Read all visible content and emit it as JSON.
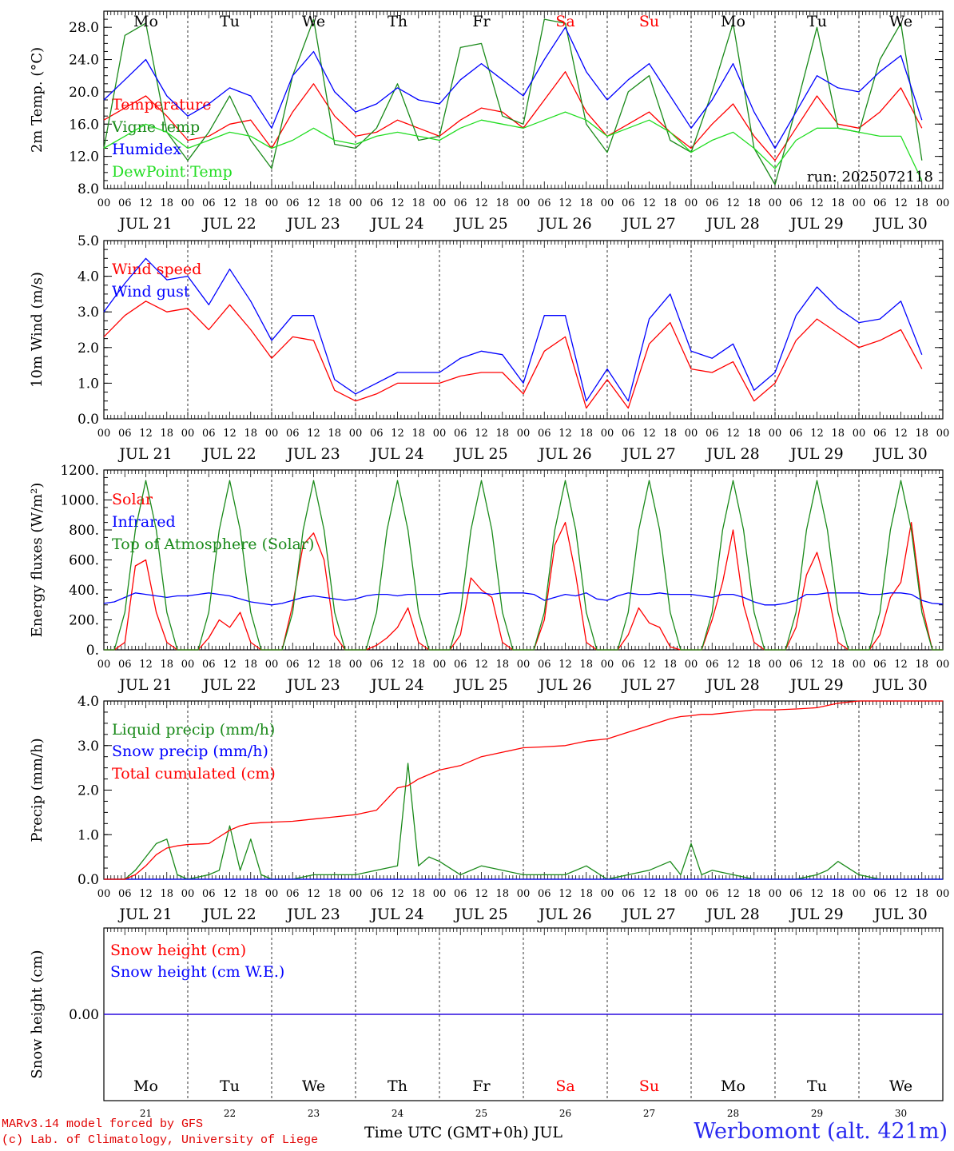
{
  "days": [
    {
      "dow": "Mo",
      "date": "JUL 21",
      "num": "21",
      "weekend": false
    },
    {
      "dow": "Tu",
      "date": "JUL 22",
      "num": "22",
      "weekend": false
    },
    {
      "dow": "We",
      "date": "JUL 23",
      "num": "23",
      "weekend": false
    },
    {
      "dow": "Th",
      "date": "JUL 24",
      "num": "24",
      "weekend": false
    },
    {
      "dow": "Fr",
      "date": "JUL 25",
      "num": "25",
      "weekend": false
    },
    {
      "dow": "Sa",
      "date": "JUL 26",
      "num": "26",
      "weekend": true
    },
    {
      "dow": "Su",
      "date": "JUL 27",
      "num": "27",
      "weekend": true
    },
    {
      "dow": "Mo",
      "date": "JUL 28",
      "num": "28",
      "weekend": false
    },
    {
      "dow": "Tu",
      "date": "JUL 29",
      "num": "29",
      "weekend": false
    },
    {
      "dow": "We",
      "date": "JUL 30",
      "num": "30",
      "weekend": false
    }
  ],
  "hour_ticks": [
    "00",
    "06",
    "12",
    "18"
  ],
  "colors": {
    "red": "#ff0000",
    "green": "#1a8a1a",
    "blue": "#0000ff",
    "light_green": "#22dd22",
    "weekend": "#ff0000"
  },
  "footer": {
    "credit1": "MARv3.14 model forced by GFS",
    "credit2": "(c) Lab. of Climatology, University of Liege",
    "x_title": "Time UTC (GMT+0h) JUL",
    "station": "Werbomont (alt. 421m)"
  },
  "chart_data": [
    {
      "type": "line",
      "ylabel": "2m Temp. (°C)",
      "ylim": [
        8,
        30
      ],
      "yticks": [
        "8.0",
        "12.0",
        "16.0",
        "20.0",
        "24.0",
        "28.0"
      ],
      "annotation": "run: 2025072118",
      "show_dow": true,
      "x_hours": [
        0,
        6,
        12,
        18,
        24,
        30,
        36,
        42,
        48,
        54,
        60,
        66,
        72,
        78,
        84,
        90,
        96,
        102,
        108,
        114,
        120,
        126,
        132,
        138,
        144,
        150,
        156,
        162,
        168,
        174,
        180,
        186,
        192,
        198,
        204,
        210,
        216,
        222,
        228,
        234
      ],
      "series": [
        {
          "name": "Temperature",
          "color": "red",
          "values": [
            16.5,
            18.0,
            19.5,
            17.0,
            14.0,
            14.5,
            16.0,
            16.5,
            13.0,
            17.5,
            21.0,
            17.0,
            14.5,
            15.0,
            16.5,
            15.5,
            14.5,
            16.5,
            18.0,
            17.5,
            15.5,
            19.0,
            22.5,
            17.5,
            14.5,
            16.0,
            17.5,
            15.0,
            13.0,
            16.0,
            18.5,
            14.5,
            11.5,
            15.5,
            19.5,
            16.0,
            15.5,
            17.5,
            20.5,
            15.5
          ]
        },
        {
          "name": "Vigne temp",
          "color": "green",
          "values": [
            13.0,
            27.0,
            28.5,
            15.0,
            11.5,
            15.0,
            19.5,
            14.0,
            10.5,
            22.0,
            29.0,
            13.5,
            13.0,
            15.5,
            21.0,
            14.0,
            14.5,
            25.5,
            26.0,
            17.0,
            16.0,
            29.0,
            28.5,
            16.0,
            12.5,
            20.0,
            22.0,
            14.0,
            12.5,
            20.0,
            28.5,
            13.0,
            8.5,
            18.0,
            28.0,
            15.5,
            15.0,
            24.0,
            28.5,
            11.5
          ]
        },
        {
          "name": "Humidex",
          "color": "blue",
          "values": [
            19.0,
            21.5,
            24.0,
            19.5,
            17.0,
            18.5,
            20.5,
            19.5,
            15.5,
            22.0,
            25.0,
            20.0,
            17.5,
            18.5,
            20.5,
            19.0,
            18.5,
            21.5,
            23.5,
            21.5,
            19.5,
            24.0,
            28.0,
            22.5,
            19.0,
            21.5,
            23.5,
            19.5,
            15.5,
            19.0,
            23.5,
            17.5,
            13.0,
            17.5,
            22.0,
            20.5,
            20.0,
            22.5,
            24.5,
            16.5
          ]
        },
        {
          "name": "DewPoint Temp",
          "color": "light_green",
          "values": [
            13.0,
            14.5,
            16.0,
            15.0,
            13.0,
            14.0,
            15.0,
            14.5,
            13.0,
            14.0,
            15.5,
            14.0,
            13.5,
            14.5,
            15.0,
            14.5,
            14.0,
            15.5,
            16.5,
            16.0,
            15.5,
            16.5,
            17.5,
            16.5,
            14.5,
            15.5,
            16.5,
            15.0,
            12.5,
            14.0,
            15.0,
            13.0,
            10.5,
            14.0,
            15.5,
            15.5,
            15.0,
            14.5,
            14.5,
            9.0
          ]
        }
      ]
    },
    {
      "type": "line",
      "ylabel": "10m Wind (m/s)",
      "ylim": [
        0,
        5
      ],
      "yticks": [
        "0.0",
        "1.0",
        "2.0",
        "3.0",
        "4.0",
        "5.0"
      ],
      "x_hours": [
        0,
        6,
        12,
        18,
        24,
        30,
        36,
        42,
        48,
        54,
        60,
        66,
        72,
        78,
        84,
        90,
        96,
        102,
        108,
        114,
        120,
        126,
        132,
        138,
        144,
        150,
        156,
        162,
        168,
        174,
        180,
        186,
        192,
        198,
        204,
        210,
        216,
        222,
        228,
        234
      ],
      "series": [
        {
          "name": "Wind speed",
          "color": "red",
          "values": [
            2.3,
            2.9,
            3.3,
            3.0,
            3.1,
            2.5,
            3.2,
            2.5,
            1.7,
            2.3,
            2.2,
            0.8,
            0.5,
            0.7,
            1.0,
            1.0,
            1.0,
            1.2,
            1.3,
            1.3,
            0.7,
            1.9,
            2.3,
            0.3,
            1.1,
            0.3,
            2.1,
            2.7,
            1.4,
            1.3,
            1.6,
            0.5,
            1.0,
            2.2,
            2.8,
            2.4,
            2.0,
            2.2,
            2.5,
            1.4
          ]
        },
        {
          "name": "Wind gust",
          "color": "blue",
          "values": [
            3.0,
            3.8,
            4.5,
            3.9,
            4.0,
            3.2,
            4.2,
            3.3,
            2.2,
            2.9,
            2.9,
            1.1,
            0.7,
            1.0,
            1.3,
            1.3,
            1.3,
            1.7,
            1.9,
            1.8,
            1.0,
            2.9,
            2.9,
            0.5,
            1.4,
            0.5,
            2.8,
            3.5,
            1.9,
            1.7,
            2.1,
            0.8,
            1.3,
            2.9,
            3.7,
            3.1,
            2.7,
            2.8,
            3.3,
            1.8
          ]
        }
      ]
    },
    {
      "type": "line",
      "ylabel": "Energy fluxes (W/m²)",
      "ylim": [
        0,
        1200
      ],
      "yticks": [
        "0.",
        "200.",
        "400.",
        "600.",
        "800.",
        "1000.",
        "1200."
      ],
      "x_hours": [
        0,
        3,
        6,
        9,
        12,
        15,
        18,
        21,
        24,
        27,
        30,
        33,
        36,
        39,
        42,
        45,
        48,
        51,
        54,
        57,
        60,
        63,
        66,
        69,
        72,
        75,
        78,
        81,
        84,
        87,
        90,
        93,
        96,
        99,
        102,
        105,
        108,
        111,
        114,
        117,
        120,
        123,
        126,
        129,
        132,
        135,
        138,
        141,
        144,
        147,
        150,
        153,
        156,
        159,
        162,
        165,
        168,
        171,
        174,
        177,
        180,
        183,
        186,
        189,
        192,
        195,
        198,
        201,
        204,
        207,
        210,
        213,
        216,
        219,
        222,
        225,
        228,
        231,
        234,
        237,
        240
      ],
      "series": [
        {
          "name": "Solar",
          "color": "red",
          "values": [
            0,
            0,
            50,
            560,
            600,
            250,
            50,
            0,
            0,
            0,
            80,
            200,
            150,
            250,
            50,
            0,
            0,
            0,
            300,
            700,
            780,
            600,
            100,
            0,
            0,
            0,
            30,
            80,
            150,
            280,
            50,
            0,
            0,
            0,
            100,
            480,
            400,
            350,
            50,
            0,
            0,
            0,
            200,
            700,
            850,
            500,
            50,
            0,
            0,
            0,
            100,
            280,
            180,
            150,
            20,
            0,
            0,
            0,
            200,
            450,
            800,
            300,
            50,
            0,
            0,
            0,
            150,
            500,
            650,
            400,
            50,
            0,
            0,
            0,
            100,
            350,
            450,
            850,
            300,
            0,
            0
          ]
        },
        {
          "name": "Infrared",
          "color": "blue",
          "values": [
            310,
            320,
            350,
            380,
            370,
            360,
            350,
            360,
            360,
            370,
            380,
            370,
            360,
            340,
            320,
            310,
            300,
            310,
            330,
            350,
            360,
            350,
            340,
            330,
            340,
            360,
            370,
            370,
            360,
            370,
            370,
            370,
            370,
            380,
            380,
            380,
            380,
            370,
            380,
            380,
            380,
            370,
            330,
            350,
            370,
            360,
            380,
            340,
            330,
            360,
            380,
            370,
            370,
            380,
            370,
            370,
            370,
            360,
            350,
            370,
            370,
            350,
            320,
            300,
            300,
            310,
            330,
            370,
            370,
            380,
            380,
            380,
            380,
            370,
            370,
            380,
            380,
            370,
            330,
            310,
            305
          ]
        },
        {
          "name": "Top of Atmosphere (Solar)",
          "color": "green",
          "values": [
            0,
            0,
            250,
            800,
            1130,
            800,
            250,
            0,
            0,
            0,
            250,
            800,
            1130,
            800,
            250,
            0,
            0,
            0,
            250,
            800,
            1130,
            800,
            250,
            0,
            0,
            0,
            250,
            800,
            1130,
            800,
            250,
            0,
            0,
            0,
            250,
            800,
            1130,
            800,
            250,
            0,
            0,
            0,
            250,
            800,
            1130,
            800,
            250,
            0,
            0,
            0,
            250,
            800,
            1130,
            800,
            250,
            0,
            0,
            0,
            250,
            800,
            1130,
            800,
            250,
            0,
            0,
            0,
            250,
            800,
            1130,
            800,
            250,
            0,
            0,
            0,
            250,
            800,
            1130,
            800,
            250,
            0,
            0
          ]
        }
      ]
    },
    {
      "type": "line",
      "ylabel": "Precip (mm/h)",
      "ylim": [
        0,
        4
      ],
      "yticks": [
        "0.0",
        "1.0",
        "2.0",
        "3.0",
        "4.0"
      ],
      "x_hours": [
        0,
        6,
        9,
        12,
        15,
        18,
        21,
        24,
        30,
        33,
        36,
        39,
        42,
        45,
        48,
        54,
        60,
        66,
        72,
        78,
        84,
        87,
        90,
        93,
        96,
        102,
        108,
        114,
        120,
        126,
        132,
        138,
        144,
        150,
        156,
        162,
        165,
        168,
        171,
        174,
        180,
        186,
        192,
        198,
        204,
        207,
        210,
        216,
        222,
        228,
        234,
        240
      ],
      "series": [
        {
          "name": "Liquid precip (mm/h)",
          "color": "green",
          "values": [
            0,
            0,
            0.2,
            0.5,
            0.8,
            0.9,
            0.1,
            0,
            0.1,
            0.2,
            1.2,
            0.2,
            0.9,
            0.1,
            0,
            0,
            0.1,
            0.1,
            0.1,
            0.2,
            0.3,
            2.6,
            0.3,
            0.5,
            0.4,
            0.1,
            0.3,
            0.2,
            0.1,
            0.1,
            0.1,
            0.3,
            0,
            0.1,
            0.2,
            0.4,
            0.1,
            0.8,
            0.1,
            0.2,
            0.1,
            0,
            0,
            0,
            0.1,
            0.2,
            0.4,
            0.1,
            0,
            0,
            0,
            0
          ]
        },
        {
          "name": "Snow precip (mm/h)",
          "color": "blue",
          "values": [
            0,
            0,
            0,
            0,
            0,
            0,
            0,
            0,
            0,
            0,
            0,
            0,
            0,
            0,
            0,
            0,
            0,
            0,
            0,
            0,
            0,
            0,
            0,
            0,
            0,
            0,
            0,
            0,
            0,
            0,
            0,
            0,
            0,
            0,
            0,
            0,
            0,
            0,
            0,
            0,
            0,
            0,
            0,
            0,
            0,
            0,
            0,
            0,
            0,
            0,
            0,
            0
          ]
        },
        {
          "name": "Total cumulated (cm)",
          "color": "red",
          "values": [
            0,
            0,
            0.1,
            0.3,
            0.55,
            0.7,
            0.75,
            0.78,
            0.8,
            0.95,
            1.1,
            1.2,
            1.25,
            1.27,
            1.28,
            1.3,
            1.35,
            1.4,
            1.45,
            1.55,
            2.05,
            2.1,
            2.25,
            2.35,
            2.45,
            2.55,
            2.75,
            2.85,
            2.95,
            2.97,
            3.0,
            3.1,
            3.15,
            3.3,
            3.45,
            3.6,
            3.65,
            3.67,
            3.7,
            3.7,
            3.75,
            3.8,
            3.8,
            3.82,
            3.85,
            3.9,
            3.95,
            4.0,
            4.0,
            4.0,
            4.0,
            4.0
          ]
        }
      ]
    },
    {
      "type": "line",
      "ylabel": "Snow height (cm)",
      "ylim": [
        -1,
        1
      ],
      "yticks": [
        "0.00"
      ],
      "show_bottom_dow": true,
      "x_hours": [
        0,
        240
      ],
      "series": [
        {
          "name": "Snow height (cm)",
          "color": "red",
          "values": [
            0,
            0
          ]
        },
        {
          "name": "Snow height (cm W.E.)",
          "color": "blue",
          "values": [
            0,
            0
          ]
        }
      ]
    }
  ]
}
